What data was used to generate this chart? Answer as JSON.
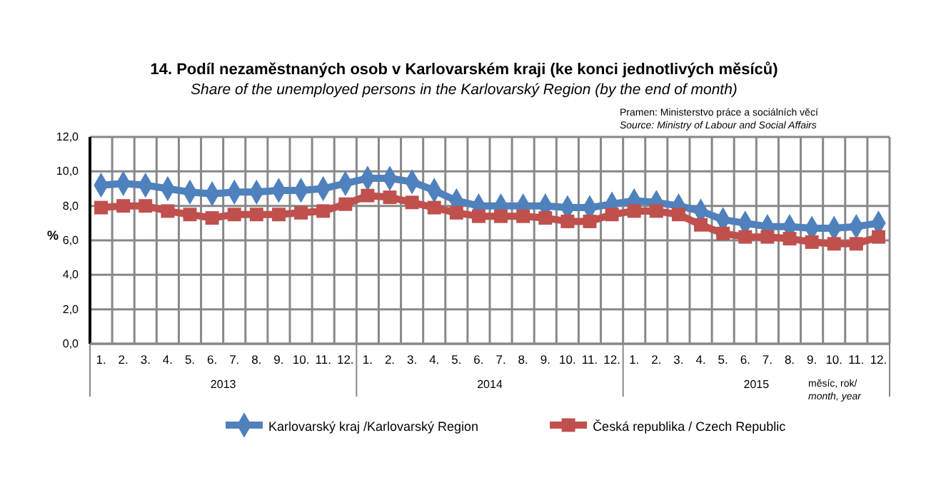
{
  "chart_data": {
    "type": "line",
    "title": "14. Podíl nezaměstnaných osob v Karlovarském kraji (ke konci jednotlivých měsíců)",
    "subtitle": "Share of the unemployed persons in the Karlovarský Region (by the end of month)",
    "ylabel": "%",
    "categories": [
      "1.",
      "2.",
      "3.",
      "4.",
      "5.",
      "6.",
      "7.",
      "8.",
      "9.",
      "10.",
      "11.",
      "12.",
      "1.",
      "2.",
      "3.",
      "4.",
      "5.",
      "6.",
      "7.",
      "8.",
      "9.",
      "10.",
      "11.",
      "12.",
      "1.",
      "2.",
      "3.",
      "4.",
      "5.",
      "6.",
      "7.",
      "8.",
      "9.",
      "10.",
      "11.",
      "12."
    ],
    "series": [
      {
        "name": "Karlovarský kraj /Karlovarský Region",
        "color": "#4f81bd",
        "marker": "diamond",
        "values": [
          9.2,
          9.3,
          9.2,
          9.0,
          8.8,
          8.7,
          8.8,
          8.8,
          8.9,
          8.9,
          9.0,
          9.3,
          9.6,
          9.6,
          9.4,
          8.9,
          8.3,
          8.0,
          8.0,
          8.0,
          8.0,
          7.9,
          7.9,
          8.1,
          8.3,
          8.2,
          8.0,
          7.7,
          7.2,
          7.0,
          6.8,
          6.8,
          6.7,
          6.7,
          6.8,
          7.0
        ]
      },
      {
        "name": "Česká republika / Czech Republic",
        "color": "#c0504d",
        "marker": "square",
        "values": [
          7.9,
          8.0,
          8.0,
          7.7,
          7.5,
          7.3,
          7.5,
          7.5,
          7.5,
          7.6,
          7.7,
          8.1,
          8.6,
          8.5,
          8.2,
          7.9,
          7.6,
          7.4,
          7.4,
          7.4,
          7.3,
          7.1,
          7.1,
          7.5,
          7.7,
          7.7,
          7.5,
          6.9,
          6.4,
          6.2,
          6.2,
          6.1,
          5.9,
          5.8,
          5.8,
          6.2
        ]
      }
    ],
    "ylim": [
      0,
      12
    ],
    "yticks": [
      {
        "value": 0,
        "label": "0,0"
      },
      {
        "value": 2,
        "label": "2,0"
      },
      {
        "value": 4,
        "label": "4,0"
      },
      {
        "value": 6,
        "label": "6,0"
      },
      {
        "value": 8,
        "label": "8,0"
      },
      {
        "value": 10,
        "label": "10,0"
      },
      {
        "value": 12,
        "label": "12,0"
      }
    ],
    "grid": true,
    "legend": "bottom",
    "annotations": [
      "Pramen: Ministerstvo práce a sociálních věcí",
      "Source: Ministry of Labour and Social Affairs",
      "2013",
      "2014",
      "2015",
      "měsíc, rok/",
      "month, year"
    ]
  }
}
